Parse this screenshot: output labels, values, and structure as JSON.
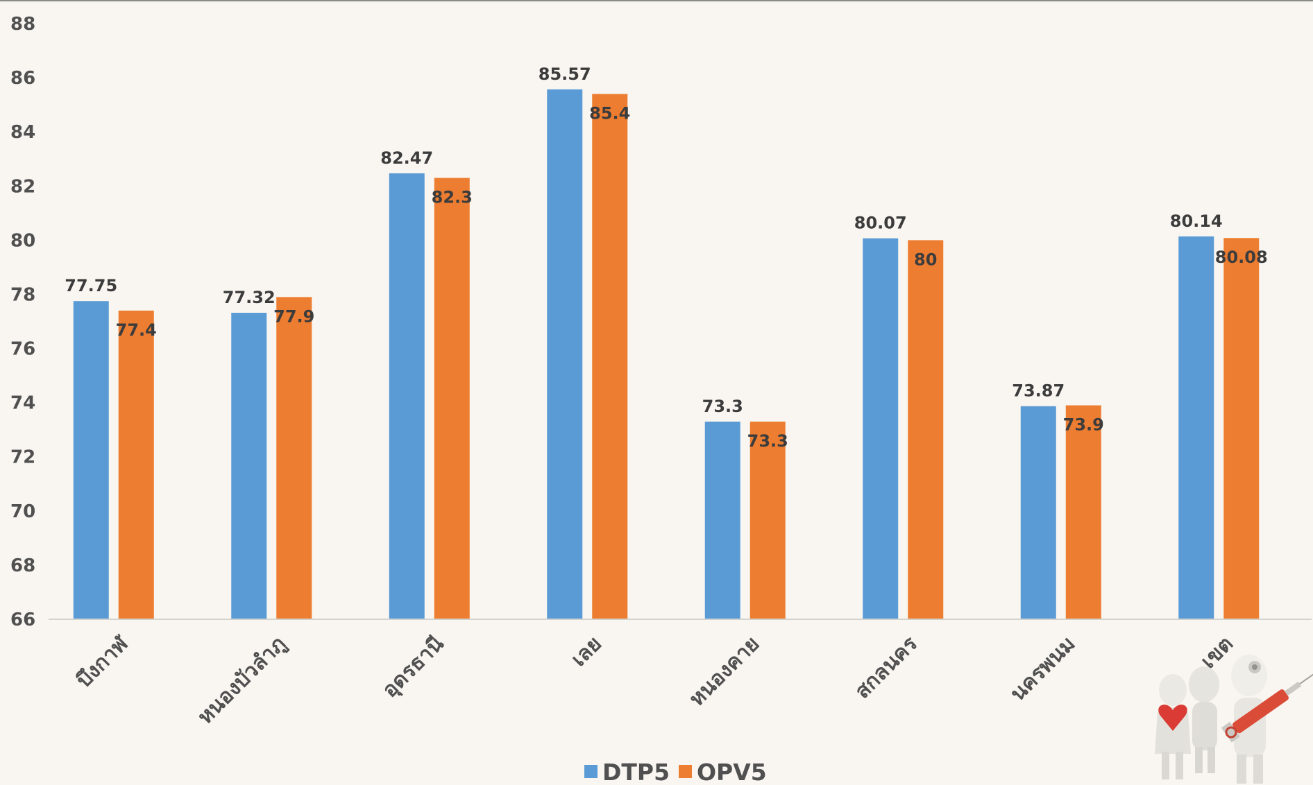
{
  "chart_data": {
    "type": "bar",
    "title": "",
    "xlabel": "",
    "ylabel": "",
    "ylim": [
      66,
      88
    ],
    "yticks": [
      66,
      68,
      70,
      72,
      74,
      76,
      78,
      80,
      82,
      84,
      86,
      88
    ],
    "grid": false,
    "legend_position": "bottom",
    "categories": [
      "บึงกาฬ",
      "หนองบัวลำภู",
      "อุดรธานี",
      "เลย",
      "หนองคาย",
      "สกลนคร",
      "นครพนม",
      "เขต"
    ],
    "series": [
      {
        "name": "DTP5",
        "color": "#5b9bd5",
        "values": [
          77.75,
          77.32,
          82.47,
          85.57,
          73.3,
          80.07,
          73.87,
          80.14
        ],
        "labels": [
          "77.75",
          "77.32",
          "82.47",
          "85.57",
          "73.3",
          "80.07",
          "73.87",
          "80.14"
        ]
      },
      {
        "name": "OPV5",
        "color": "#ed7d31",
        "values": [
          77.4,
          77.9,
          82.3,
          85.4,
          73.3,
          80,
          73.9,
          80.08
        ],
        "labels": [
          "77.4",
          "77.9",
          "82.3",
          "85.4",
          "73.3",
          "80",
          "73.9",
          "80.08"
        ]
      }
    ]
  },
  "decoration": {
    "icon": "doctors-with-syringe-icon"
  }
}
